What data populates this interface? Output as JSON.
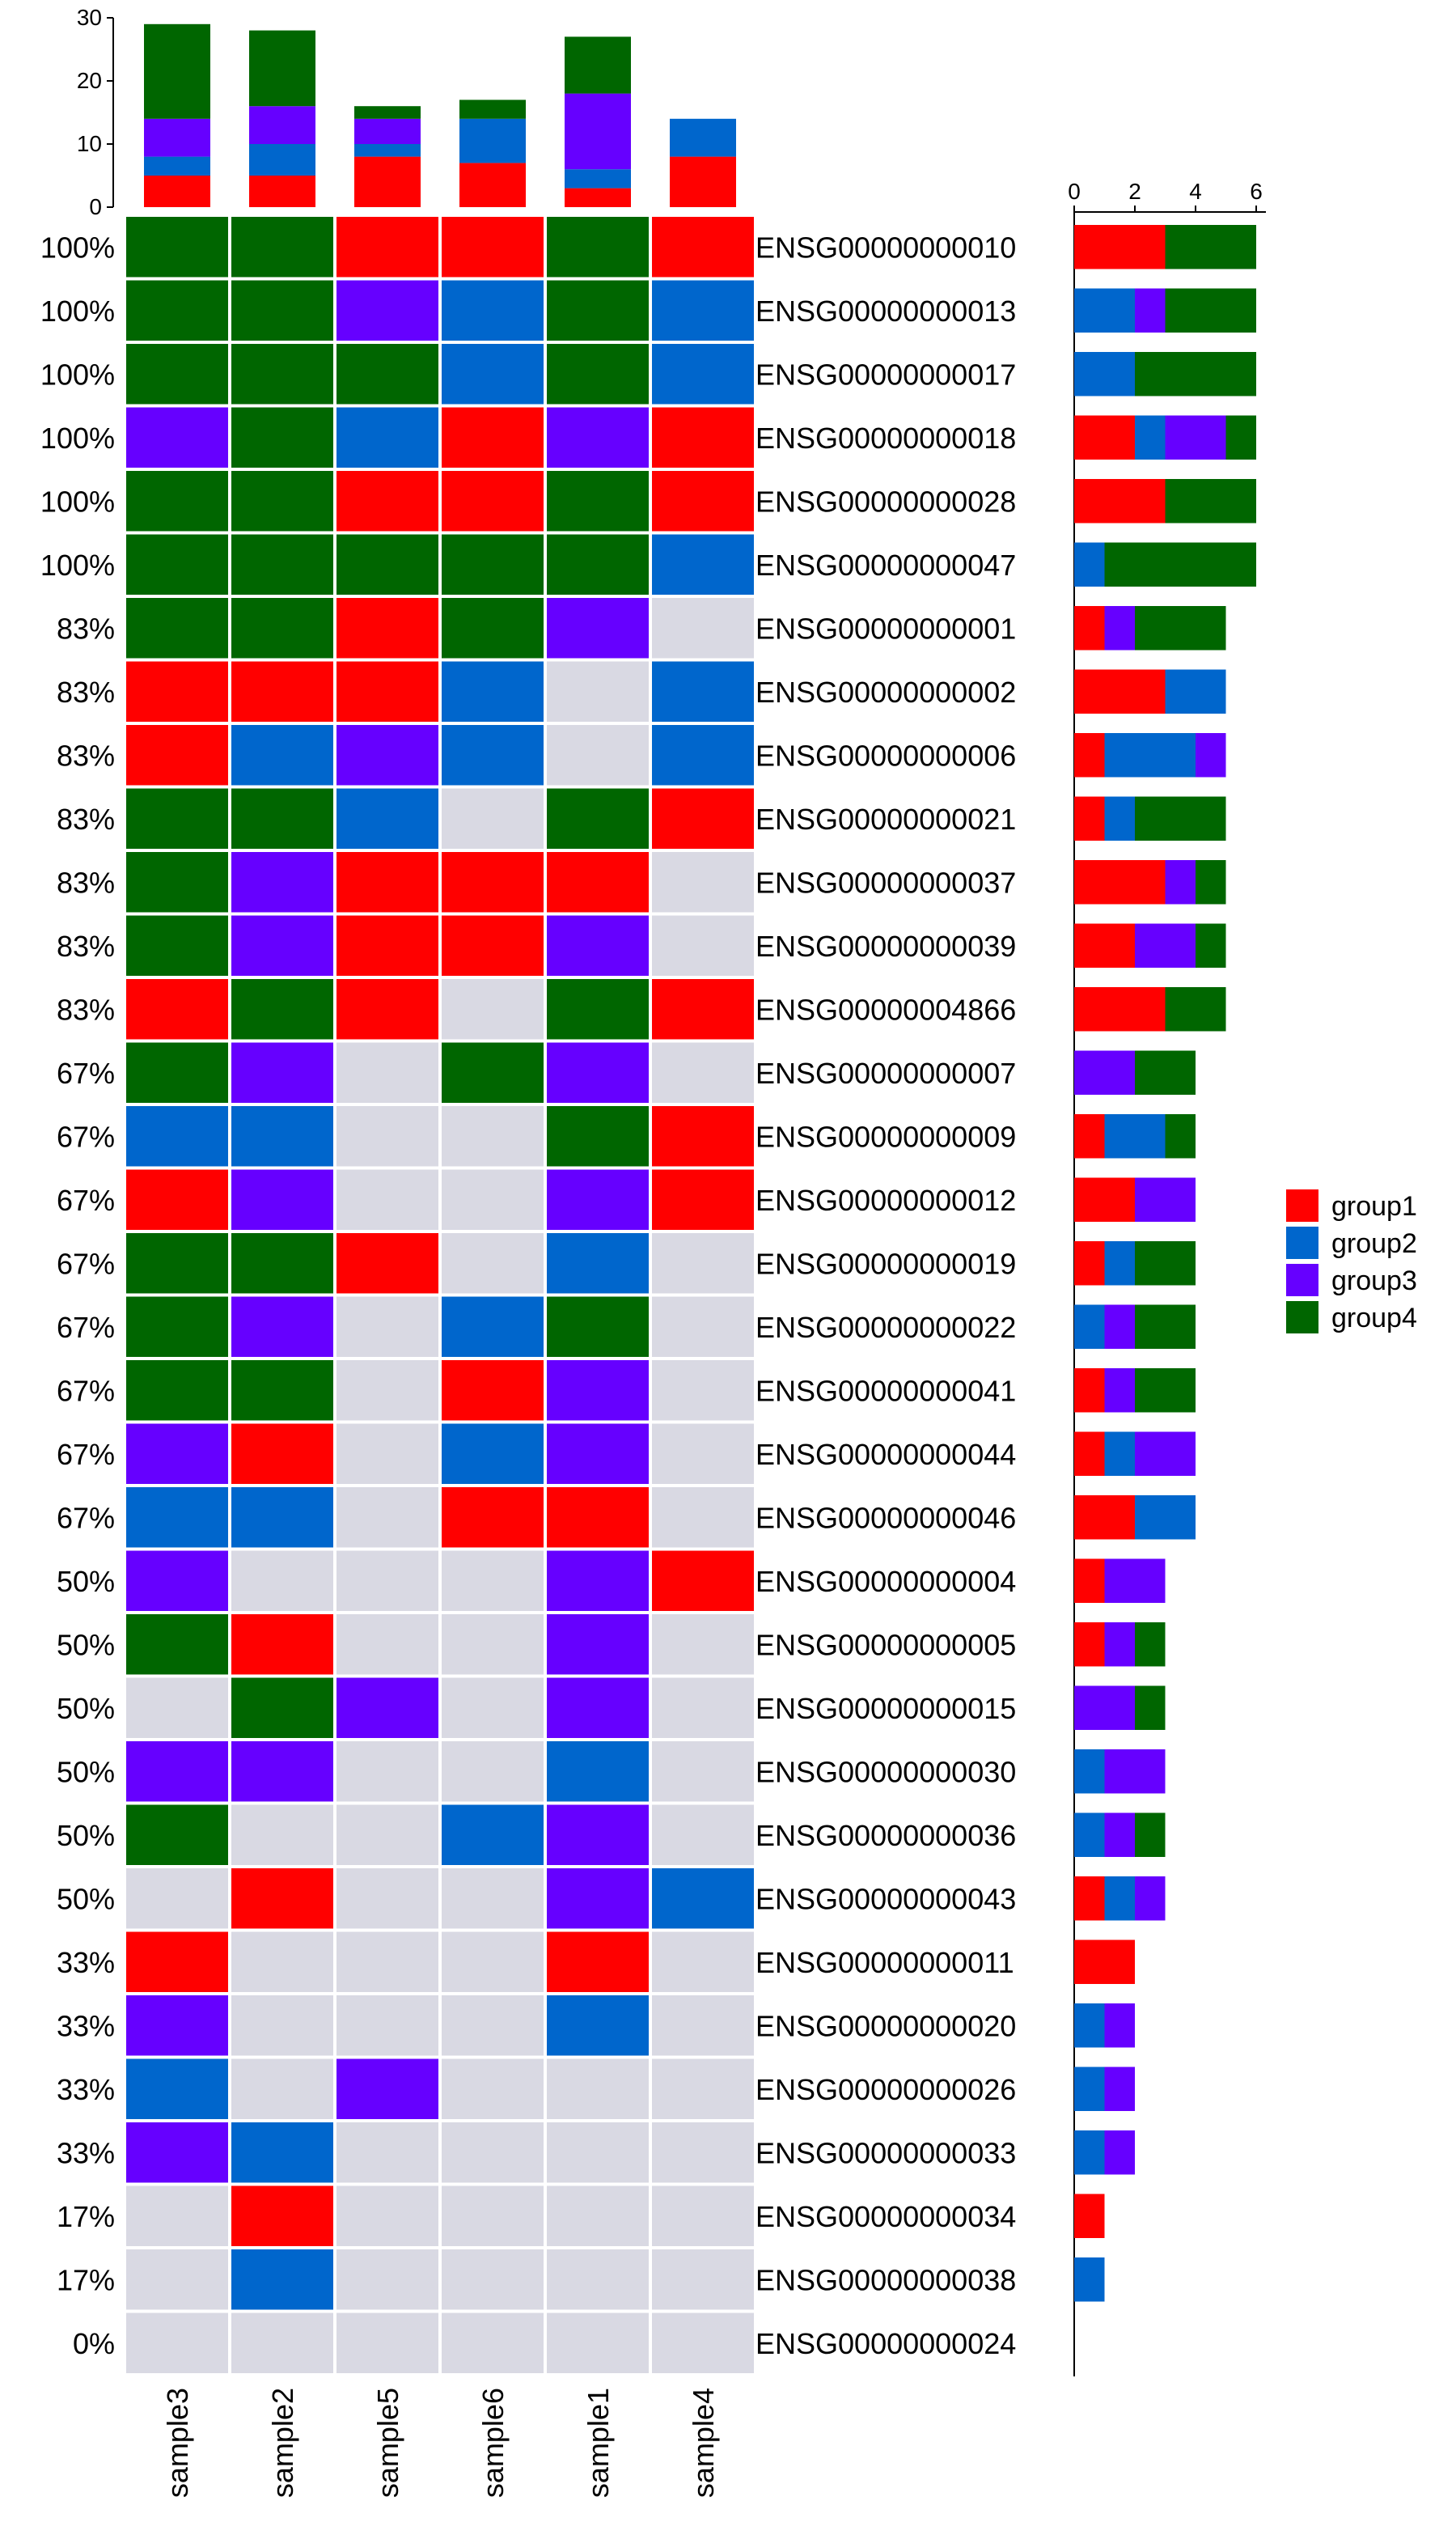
{
  "chart_data": {
    "type": "heatmap",
    "title": "",
    "colors": {
      "group1": "#FF0000",
      "group2": "#0066CC",
      "group3": "#6600FF",
      "group4": "#006600",
      "empty": "#D9D9E3"
    },
    "legend": {
      "placement": "right",
      "entries": [
        "group1",
        "group2",
        "group3",
        "group4"
      ]
    },
    "samples": [
      "sample3",
      "sample2",
      "sample5",
      "sample6",
      "sample1",
      "sample4"
    ],
    "top_bars": {
      "ticks": [
        "0",
        "10",
        "20",
        "30"
      ],
      "ylim": [
        0,
        30
      ],
      "series_order": [
        "group1",
        "group2",
        "group3",
        "group4"
      ],
      "values": [
        {
          "sample": "sample3",
          "group1": 5,
          "group2": 3,
          "group3": 6,
          "group4": 15
        },
        {
          "sample": "sample2",
          "group1": 5,
          "group2": 5,
          "group3": 6,
          "group4": 12
        },
        {
          "sample": "sample5",
          "group1": 8,
          "group2": 2,
          "group3": 4,
          "group4": 2
        },
        {
          "sample": "sample6",
          "group1": 7,
          "group2": 7,
          "group3": 0,
          "group4": 3
        },
        {
          "sample": "sample1",
          "group1": 3,
          "group2": 3,
          "group3": 12,
          "group4": 9
        },
        {
          "sample": "sample4",
          "group1": 8,
          "group2": 6,
          "group3": 0,
          "group4": 0
        }
      ]
    },
    "right_bars": {
      "ticks": [
        "0",
        "2",
        "4",
        "6"
      ],
      "xlim": [
        0,
        6
      ]
    },
    "rows": [
      {
        "gene": "ENSG00000000010",
        "pct": "100%",
        "cells": [
          "group4",
          "group4",
          "group1",
          "group1",
          "group4",
          "group1"
        ],
        "bar": {
          "group1": 3,
          "group2": 0,
          "group3": 0,
          "group4": 3
        }
      },
      {
        "gene": "ENSG00000000013",
        "pct": "100%",
        "cells": [
          "group4",
          "group4",
          "group3",
          "group2",
          "group4",
          "group2"
        ],
        "bar": {
          "group1": 0,
          "group2": 2,
          "group3": 1,
          "group4": 3
        }
      },
      {
        "gene": "ENSG00000000017",
        "pct": "100%",
        "cells": [
          "group4",
          "group4",
          "group4",
          "group2",
          "group4",
          "group2"
        ],
        "bar": {
          "group1": 0,
          "group2": 2,
          "group3": 0,
          "group4": 4
        }
      },
      {
        "gene": "ENSG00000000018",
        "pct": "100%",
        "cells": [
          "group3",
          "group4",
          "group2",
          "group1",
          "group3",
          "group1"
        ],
        "bar": {
          "group1": 2,
          "group2": 1,
          "group3": 2,
          "group4": 1
        }
      },
      {
        "gene": "ENSG00000000028",
        "pct": "100%",
        "cells": [
          "group4",
          "group4",
          "group1",
          "group1",
          "group4",
          "group1"
        ],
        "bar": {
          "group1": 3,
          "group2": 0,
          "group3": 0,
          "group4": 3
        }
      },
      {
        "gene": "ENSG00000000047",
        "pct": "100%",
        "cells": [
          "group4",
          "group4",
          "group4",
          "group4",
          "group4",
          "group2"
        ],
        "bar": {
          "group1": 0,
          "group2": 1,
          "group3": 0,
          "group4": 5
        }
      },
      {
        "gene": "ENSG00000000001",
        "pct": "83%",
        "cells": [
          "group4",
          "group4",
          "group1",
          "group4",
          "group3",
          "empty"
        ],
        "bar": {
          "group1": 1,
          "group2": 0,
          "group3": 1,
          "group4": 3
        }
      },
      {
        "gene": "ENSG00000000002",
        "pct": "83%",
        "cells": [
          "group1",
          "group1",
          "group1",
          "group2",
          "empty",
          "group2"
        ],
        "bar": {
          "group1": 3,
          "group2": 2,
          "group3": 0,
          "group4": 0
        }
      },
      {
        "gene": "ENSG00000000006",
        "pct": "83%",
        "cells": [
          "group1",
          "group2",
          "group3",
          "group2",
          "empty",
          "group2"
        ],
        "bar": {
          "group1": 1,
          "group2": 3,
          "group3": 1,
          "group4": 0
        }
      },
      {
        "gene": "ENSG00000000021",
        "pct": "83%",
        "cells": [
          "group4",
          "group4",
          "group2",
          "empty",
          "group4",
          "group1"
        ],
        "bar": {
          "group1": 1,
          "group2": 1,
          "group3": 0,
          "group4": 3
        }
      },
      {
        "gene": "ENSG00000000037",
        "pct": "83%",
        "cells": [
          "group4",
          "group3",
          "group1",
          "group1",
          "group1",
          "empty"
        ],
        "bar": {
          "group1": 3,
          "group2": 0,
          "group3": 1,
          "group4": 1
        }
      },
      {
        "gene": "ENSG00000000039",
        "pct": "83%",
        "cells": [
          "group4",
          "group3",
          "group1",
          "group1",
          "group3",
          "empty"
        ],
        "bar": {
          "group1": 2,
          "group2": 0,
          "group3": 2,
          "group4": 1
        }
      },
      {
        "gene": "ENSG00000004866",
        "pct": "83%",
        "cells": [
          "group1",
          "group4",
          "group1",
          "empty",
          "group4",
          "group1"
        ],
        "bar": {
          "group1": 3,
          "group2": 0,
          "group3": 0,
          "group4": 2
        }
      },
      {
        "gene": "ENSG00000000007",
        "pct": "67%",
        "cells": [
          "group4",
          "group3",
          "empty",
          "group4",
          "group3",
          "empty"
        ],
        "bar": {
          "group1": 0,
          "group2": 0,
          "group3": 2,
          "group4": 2
        }
      },
      {
        "gene": "ENSG00000000009",
        "pct": "67%",
        "cells": [
          "group2",
          "group2",
          "empty",
          "empty",
          "group4",
          "group1"
        ],
        "bar": {
          "group1": 1,
          "group2": 2,
          "group3": 0,
          "group4": 1
        }
      },
      {
        "gene": "ENSG00000000012",
        "pct": "67%",
        "cells": [
          "group1",
          "group3",
          "empty",
          "empty",
          "group3",
          "group1"
        ],
        "bar": {
          "group1": 2,
          "group2": 0,
          "group3": 2,
          "group4": 0
        }
      },
      {
        "gene": "ENSG00000000019",
        "pct": "67%",
        "cells": [
          "group4",
          "group4",
          "group1",
          "empty",
          "group2",
          "empty"
        ],
        "bar": {
          "group1": 1,
          "group2": 1,
          "group3": 0,
          "group4": 2
        }
      },
      {
        "gene": "ENSG00000000022",
        "pct": "67%",
        "cells": [
          "group4",
          "group3",
          "empty",
          "group2",
          "group4",
          "empty"
        ],
        "bar": {
          "group1": 0,
          "group2": 1,
          "group3": 1,
          "group4": 2
        }
      },
      {
        "gene": "ENSG00000000041",
        "pct": "67%",
        "cells": [
          "group4",
          "group4",
          "empty",
          "group1",
          "group3",
          "empty"
        ],
        "bar": {
          "group1": 1,
          "group2": 0,
          "group3": 1,
          "group4": 2
        }
      },
      {
        "gene": "ENSG00000000044",
        "pct": "67%",
        "cells": [
          "group3",
          "group1",
          "empty",
          "group2",
          "group3",
          "empty"
        ],
        "bar": {
          "group1": 1,
          "group2": 1,
          "group3": 2,
          "group4": 0
        }
      },
      {
        "gene": "ENSG00000000046",
        "pct": "67%",
        "cells": [
          "group2",
          "group2",
          "empty",
          "group1",
          "group1",
          "empty"
        ],
        "bar": {
          "group1": 2,
          "group2": 2,
          "group3": 0,
          "group4": 0
        }
      },
      {
        "gene": "ENSG00000000004",
        "pct": "50%",
        "cells": [
          "group3",
          "empty",
          "empty",
          "empty",
          "group3",
          "group1"
        ],
        "bar": {
          "group1": 1,
          "group2": 0,
          "group3": 2,
          "group4": 0
        }
      },
      {
        "gene": "ENSG00000000005",
        "pct": "50%",
        "cells": [
          "group4",
          "group1",
          "empty",
          "empty",
          "group3",
          "empty"
        ],
        "bar": {
          "group1": 1,
          "group2": 0,
          "group3": 1,
          "group4": 1
        }
      },
      {
        "gene": "ENSG00000000015",
        "pct": "50%",
        "cells": [
          "empty",
          "group4",
          "group3",
          "empty",
          "group3",
          "empty"
        ],
        "bar": {
          "group1": 0,
          "group2": 0,
          "group3": 2,
          "group4": 1
        }
      },
      {
        "gene": "ENSG00000000030",
        "pct": "50%",
        "cells": [
          "group3",
          "group3",
          "empty",
          "empty",
          "group2",
          "empty"
        ],
        "bar": {
          "group1": 0,
          "group2": 1,
          "group3": 2,
          "group4": 0
        }
      },
      {
        "gene": "ENSG00000000036",
        "pct": "50%",
        "cells": [
          "group4",
          "empty",
          "empty",
          "group2",
          "group3",
          "empty"
        ],
        "bar": {
          "group1": 0,
          "group2": 1,
          "group3": 1,
          "group4": 1
        }
      },
      {
        "gene": "ENSG00000000043",
        "pct": "50%",
        "cells": [
          "empty",
          "group1",
          "empty",
          "empty",
          "group3",
          "group2"
        ],
        "bar": {
          "group1": 1,
          "group2": 1,
          "group3": 1,
          "group4": 0
        }
      },
      {
        "gene": "ENSG00000000011",
        "pct": "33%",
        "cells": [
          "group1",
          "empty",
          "empty",
          "empty",
          "group1",
          "empty"
        ],
        "bar": {
          "group1": 2,
          "group2": 0,
          "group3": 0,
          "group4": 0
        }
      },
      {
        "gene": "ENSG00000000020",
        "pct": "33%",
        "cells": [
          "group3",
          "empty",
          "empty",
          "empty",
          "group2",
          "empty"
        ],
        "bar": {
          "group1": 0,
          "group2": 1,
          "group3": 1,
          "group4": 0
        }
      },
      {
        "gene": "ENSG00000000026",
        "pct": "33%",
        "cells": [
          "group2",
          "empty",
          "group3",
          "empty",
          "empty",
          "empty"
        ],
        "bar": {
          "group1": 0,
          "group2": 1,
          "group3": 1,
          "group4": 0
        }
      },
      {
        "gene": "ENSG00000000033",
        "pct": "33%",
        "cells": [
          "group3",
          "group2",
          "empty",
          "empty",
          "empty",
          "empty"
        ],
        "bar": {
          "group1": 0,
          "group2": 1,
          "group3": 1,
          "group4": 0
        }
      },
      {
        "gene": "ENSG00000000034",
        "pct": "17%",
        "cells": [
          "empty",
          "group1",
          "empty",
          "empty",
          "empty",
          "empty"
        ],
        "bar": {
          "group1": 1,
          "group2": 0,
          "group3": 0,
          "group4": 0
        }
      },
      {
        "gene": "ENSG00000000038",
        "pct": "17%",
        "cells": [
          "empty",
          "group2",
          "empty",
          "empty",
          "empty",
          "empty"
        ],
        "bar": {
          "group1": 0,
          "group2": 1,
          "group3": 0,
          "group4": 0
        }
      },
      {
        "gene": "ENSG00000000024",
        "pct": "0%",
        "cells": [
          "empty",
          "empty",
          "empty",
          "empty",
          "empty",
          "empty"
        ],
        "bar": {
          "group1": 0,
          "group2": 0,
          "group3": 0,
          "group4": 0
        }
      }
    ]
  }
}
